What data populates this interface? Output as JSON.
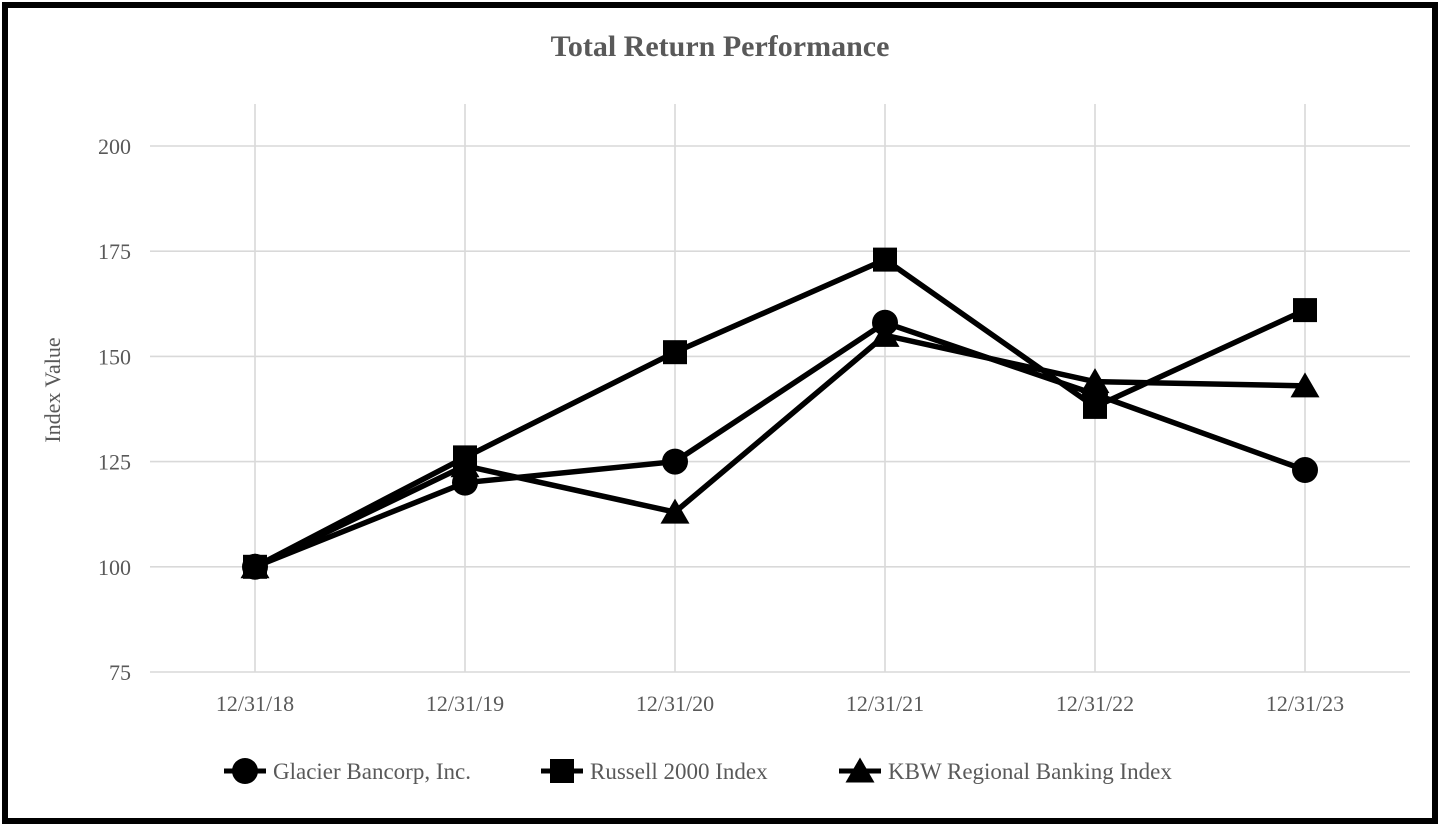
{
  "chart_data": {
    "type": "line",
    "title": "Total Return Performance",
    "ylabel": "Index Value",
    "xlabel": "",
    "categories": [
      "12/31/18",
      "12/31/19",
      "12/31/20",
      "12/31/21",
      "12/31/22",
      "12/31/23"
    ],
    "y_ticks": [
      200,
      175,
      150,
      125,
      100,
      75
    ],
    "ylim": [
      75,
      212
    ],
    "grid": true,
    "legend_position": "bottom",
    "series": [
      {
        "name": "Glacier Bancorp, Inc.",
        "marker": "circle",
        "values": [
          100,
          120,
          125,
          158,
          141,
          123
        ]
      },
      {
        "name": "Russell 2000 Index",
        "marker": "square",
        "values": [
          100,
          126,
          151,
          173,
          138,
          161
        ]
      },
      {
        "name": "KBW Regional Banking Index",
        "marker": "triangle",
        "values": [
          100,
          124,
          113,
          155,
          144,
          143
        ]
      }
    ],
    "colors": {
      "line": "#000000",
      "grid": "#d9d9d9",
      "text": "#595959",
      "background": "#ffffff",
      "border": "#000000"
    }
  }
}
